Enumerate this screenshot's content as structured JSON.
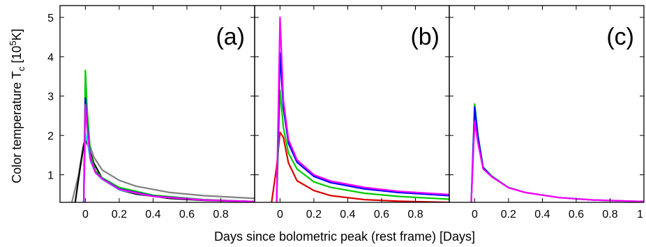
{
  "chart_data": {
    "type": "line",
    "xlabel": "Days since bolometric peak (rest frame) [Days]",
    "ylabel_parts": {
      "base": "Color temperature T",
      "sub": "c",
      "open": " [10",
      "sup": "5",
      "close": "K]"
    },
    "ylim": [
      0.3,
      5.3
    ],
    "yticks": [
      1,
      2,
      3,
      4,
      5
    ],
    "panels": [
      {
        "label": "(a)",
        "xlim": [
          -0.15,
          1.0
        ],
        "xticks": [
          0,
          0.2,
          0.4,
          0.6,
          0.8
        ],
        "tick_labels": [
          "0",
          "0.2",
          "0.4",
          "0.6",
          "0.8"
        ],
        "series": [
          {
            "color": "#808080",
            "x": [
              -0.08,
              -0.04,
              -0.01,
              0.0,
              0.02,
              0.05,
              0.1,
              0.2,
              0.3,
              0.5,
              0.7,
              1.0
            ],
            "y": [
              0.3,
              1.0,
              1.8,
              1.9,
              1.82,
              1.45,
              1.12,
              0.86,
              0.71,
              0.55,
              0.47,
              0.4
            ]
          },
          {
            "color": "#000000",
            "x": [
              -0.06,
              -0.03,
              -0.01,
              0.0,
              0.02,
              0.05,
              0.1,
              0.2,
              0.3,
              0.5,
              0.7,
              1.0
            ],
            "y": [
              0.3,
              1.2,
              1.75,
              1.88,
              1.7,
              1.3,
              0.9,
              0.62,
              0.51,
              0.4,
              0.35,
              0.32
            ]
          },
          {
            "color": "#00ffff",
            "x": [
              -0.01,
              0.0,
              0.01,
              0.03,
              0.06,
              0.1,
              0.2,
              0.4,
              0.7,
              1.0
            ],
            "y": [
              0.3,
              2.05,
              1.9,
              1.35,
              1.05,
              0.88,
              0.62,
              0.45,
              0.36,
              0.32
            ]
          },
          {
            "color": "#00cc00",
            "x": [
              -0.01,
              0.0,
              0.01,
              0.03,
              0.06,
              0.1,
              0.2,
              0.4,
              0.7,
              1.0
            ],
            "y": [
              0.3,
              3.65,
              2.7,
              1.5,
              1.1,
              0.92,
              0.68,
              0.48,
              0.37,
              0.32
            ]
          },
          {
            "color": "#0000ff",
            "x": [
              -0.01,
              0.0,
              0.01,
              0.03,
              0.06,
              0.1,
              0.2,
              0.4,
              0.7,
              1.0
            ],
            "y": [
              0.3,
              2.95,
              2.3,
              1.4,
              1.06,
              0.9,
              0.64,
              0.46,
              0.36,
              0.32
            ]
          },
          {
            "color": "#ff00ff",
            "x": [
              -0.01,
              0.0,
              0.01,
              0.03,
              0.06,
              0.1,
              0.2,
              0.4,
              0.7,
              1.0
            ],
            "y": [
              0.3,
              2.78,
              2.2,
              1.38,
              1.05,
              0.89,
              0.63,
              0.45,
              0.36,
              0.32
            ]
          }
        ]
      },
      {
        "label": "(b)",
        "xlim": [
          -0.15,
          1.0
        ],
        "xticks": [
          0,
          0.2,
          0.4,
          0.6,
          0.8
        ],
        "tick_labels": [
          "0",
          "0.2",
          "0.4",
          "0.6",
          "0.8"
        ],
        "series": [
          {
            "color": "#dd0000",
            "x": [
              -0.05,
              -0.02,
              0.0,
              0.02,
              0.05,
              0.1,
              0.2,
              0.3,
              0.5,
              0.7,
              1.0
            ],
            "y": [
              0.3,
              1.2,
              2.08,
              1.95,
              1.3,
              0.85,
              0.6,
              0.47,
              0.37,
              0.33,
              0.3
            ]
          },
          {
            "color": "#00cc00",
            "x": [
              -0.02,
              0.0,
              0.02,
              0.05,
              0.1,
              0.2,
              0.3,
              0.5,
              0.7,
              1.0
            ],
            "y": [
              0.3,
              3.15,
              2.2,
              1.55,
              1.15,
              0.82,
              0.68,
              0.53,
              0.45,
              0.38
            ]
          },
          {
            "color": "#0000ff",
            "x": [
              -0.02,
              0.0,
              0.02,
              0.05,
              0.1,
              0.2,
              0.3,
              0.5,
              0.7,
              1.0
            ],
            "y": [
              0.3,
              4.1,
              2.7,
              1.8,
              1.32,
              0.96,
              0.8,
              0.64,
              0.55,
              0.47
            ]
          },
          {
            "color": "#ff00ff",
            "x": [
              -0.02,
              0.0,
              0.02,
              0.05,
              0.1,
              0.2,
              0.3,
              0.5,
              0.7,
              1.0
            ],
            "y": [
              0.3,
              5.0,
              2.9,
              1.9,
              1.38,
              1.0,
              0.84,
              0.68,
              0.58,
              0.5
            ]
          }
        ]
      },
      {
        "label": "(c)",
        "xlim": [
          -0.15,
          1.0
        ],
        "xticks": [
          0,
          0.2,
          0.4,
          0.6,
          0.8,
          1.0
        ],
        "tick_labels": [
          "0",
          "0.2",
          "0.4",
          "0.6",
          "0.8",
          "1"
        ],
        "series": [
          {
            "color": "#00cc00",
            "x": [
              -0.02,
              0.0,
              0.02,
              0.05,
              0.1,
              0.2,
              0.3,
              0.5,
              0.7,
              1.0
            ],
            "y": [
              0.3,
              2.8,
              2.0,
              1.2,
              0.97,
              0.68,
              0.55,
              0.42,
              0.36,
              0.32
            ]
          },
          {
            "color": "#0000ff",
            "x": [
              -0.02,
              0.0,
              0.02,
              0.05,
              0.1,
              0.2,
              0.3,
              0.5,
              0.7,
              1.0
            ],
            "y": [
              0.3,
              2.72,
              1.95,
              1.18,
              0.96,
              0.67,
              0.55,
              0.42,
              0.36,
              0.32
            ]
          },
          {
            "color": "#ff00ff",
            "x": [
              -0.02,
              0.0,
              0.02,
              0.05,
              0.1,
              0.2,
              0.3,
              0.5,
              0.7,
              1.0
            ],
            "y": [
              0.3,
              2.35,
              1.8,
              1.15,
              0.95,
              0.67,
              0.55,
              0.42,
              0.36,
              0.32
            ]
          }
        ]
      }
    ],
    "grid": false,
    "legend": "none"
  }
}
